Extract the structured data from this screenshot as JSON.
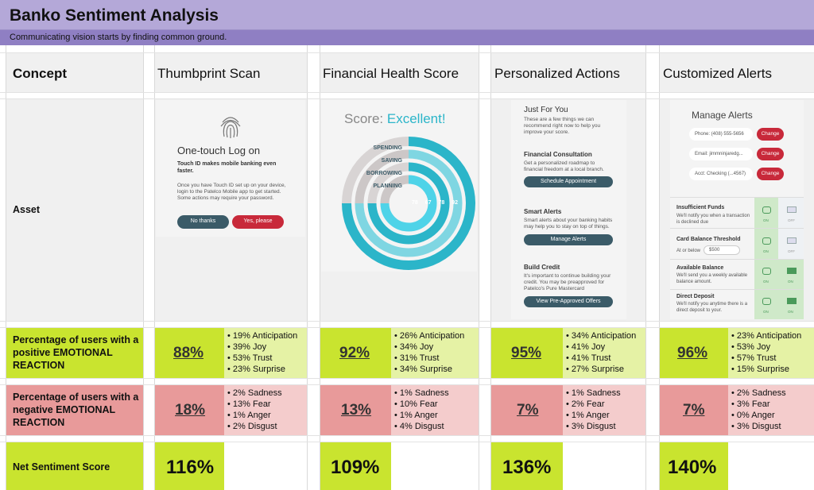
{
  "header": {
    "title": "Banko Sentiment Analysis",
    "subtitle": "Communicating vision starts by finding common ground."
  },
  "rows": {
    "concept_label": "Concept",
    "asset_label": "Asset",
    "positive_label": "Percentage of users with a positive EMOTIONAL REACTION",
    "negative_label": "Percentage of users with a negative EMOTIONAL REACTION",
    "net_label": "Net Sentiment Score"
  },
  "concepts": [
    {
      "name": "Thumbprint Scan",
      "positive_pct": "88%",
      "positive_breakdown": [
        "• 19% Anticipation",
        "• 39% Joy",
        "• 53% Trust",
        "• 23% Surprise"
      ],
      "negative_pct": "18%",
      "negative_breakdown": [
        "• 2% Sadness",
        "• 13% Fear",
        "• 1% Anger",
        "• 2% Disgust"
      ],
      "net_score": "116%"
    },
    {
      "name": "Financial Health Score",
      "positive_pct": "92%",
      "positive_breakdown": [
        "• 26% Anticipation",
        "• 34% Joy",
        "• 31% Trust",
        "• 34% Surprise"
      ],
      "negative_pct": "13%",
      "negative_breakdown": [
        "• 1% Sadness",
        "• 10% Fear",
        "• 1% Anger",
        "• 4% Disgust"
      ],
      "net_score": "109%"
    },
    {
      "name": "Personalized Actions",
      "positive_pct": "95%",
      "positive_breakdown": [
        "• 34% Anticipation",
        "• 41% Joy",
        "• 41% Trust",
        "• 27% Surprise"
      ],
      "negative_pct": "7%",
      "negative_breakdown": [
        "• 1% Sadness",
        "• 2% Fear",
        "• 1% Anger",
        "• 3% Disgust"
      ],
      "net_score": "136%"
    },
    {
      "name": "Customized Alerts",
      "positive_pct": "96%",
      "positive_breakdown": [
        "• 23% Anticipation",
        "• 53% Joy",
        "• 57% Trust",
        "• 15% Surprise"
      ],
      "negative_pct": "7%",
      "negative_breakdown": [
        "• 2% Sadness",
        "• 3% Fear",
        "• 0% Anger",
        "• 3% Disgust"
      ],
      "net_score": "140%"
    }
  ],
  "mock_thumbprint": {
    "heading": "One-touch Log on",
    "bold_text": "Touch ID makes mobile banking even faster.",
    "body_text": "Once you have Touch ID set up on your device, login to the Patelco Mobile app to get started. Some actions may require your password.",
    "btn_no": "No thanks",
    "btn_yes": "Yes, please"
  },
  "mock_health": {
    "score_prefix": "Score:",
    "score_value": "Excellent!",
    "labels": [
      "SPENDING",
      "SAVING",
      "BORROWING",
      "PLANNING"
    ],
    "values": [
      "78",
      "67",
      "78",
      "92"
    ]
  },
  "mock_actions": {
    "title": "Just For You",
    "intro": "These are a few things we can recommend right now to help you improve your score.",
    "sections": [
      {
        "title": "Financial Consultation",
        "text": "Get a personalized roadmap to financial freedom at a local branch.",
        "button": "Schedule Appointment"
      },
      {
        "title": "Smart Alerts",
        "text": "Smart alerts about your banking habits may help you to stay on top of things.",
        "button": "Manage Alerts"
      },
      {
        "title": "Build Credit",
        "text": "It's important to continue building your credit. You may be preapproved for Patelco's Pure Mastercard",
        "button": "View Pre-Approved Offers"
      }
    ]
  },
  "mock_alerts": {
    "title": "Manage Alerts",
    "fields": [
      {
        "label": "Phone: (408) 555-5656",
        "button": "Change"
      },
      {
        "label": "Email: jimmninjaredg...",
        "button": "Change"
      },
      {
        "label": "Acct: Checking (...4567)",
        "button": "Change"
      }
    ],
    "alerts": [
      {
        "title": "Insufficient Funds",
        "text": "We'll notify you when a transaction is declined due",
        "on": "ON",
        "off": "OFF"
      },
      {
        "title": "Card Balance Threshold",
        "text": "At or below",
        "amount": "$500",
        "on": "ON",
        "off": "OFF"
      },
      {
        "title": "Available Balance",
        "text": "We'll send you a weekly available balance amount.",
        "on": "ON",
        "off": "ON"
      },
      {
        "title": "Direct Deposit",
        "text": "We'll notify you anytime there is a direct deposit to your.",
        "on": "ON",
        "off": "ON"
      }
    ]
  },
  "colors": {
    "title_bar": "#b4a8d8",
    "subtitle_bar": "#8f7fc3",
    "positive": "#c9e42f",
    "positive_light": "#e5f2a5",
    "negative": "#e89a9a",
    "negative_light": "#f4cccc",
    "teal": "#2bb5c9",
    "red": "#c8293a"
  }
}
